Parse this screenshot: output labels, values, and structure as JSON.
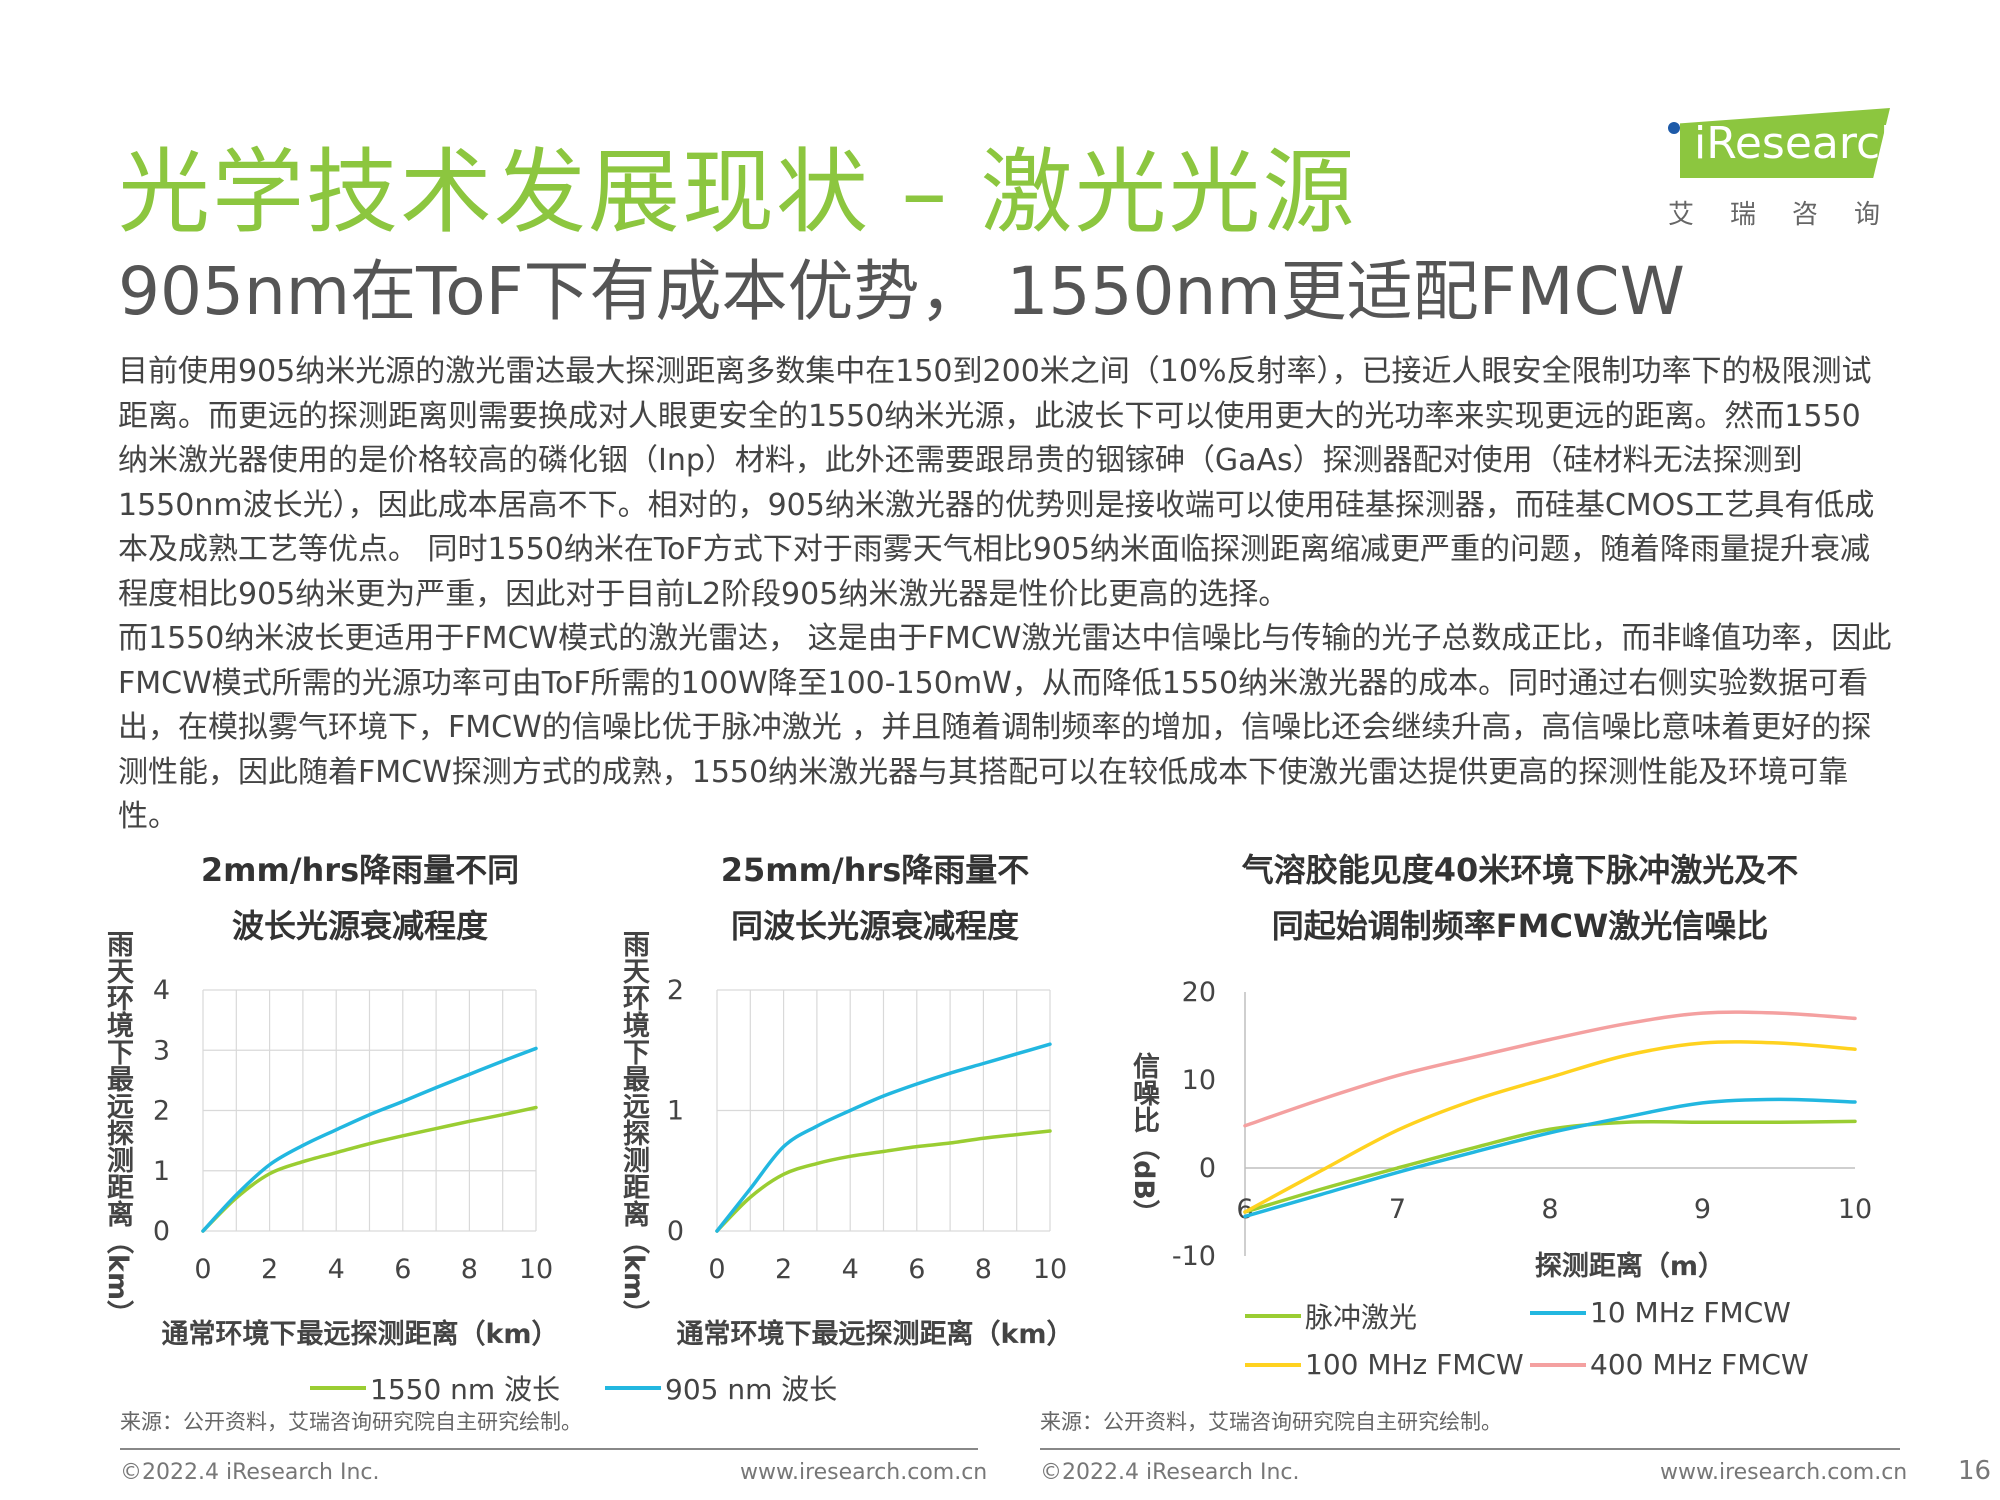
{
  "header": {
    "title": "光学技术发展现状 – 激光光源",
    "subtitle": "905nm在ToF下有成本优势， 1550nm更适配FMCW",
    "logo_text": "iResearch",
    "logo_sub": "艾瑞咨询",
    "logo_color": "#8cc63f"
  },
  "body": {
    "para1": "目前使用905纳米光源的激光雷达最大探测距离多数集中在150到200米之间（10%反射率），已接近人眼安全限制功率下的极限测试距离。而更远的探测距离则需要换成对人眼更安全的1550纳米光源，此波长下可以使用更大的光功率来实现更远的距离。然而1550 纳米激光器使用的是价格较高的磷化铟（Inp）材料，此外还需要跟昂贵的铟镓砷（GaAs）探测器配对使用（硅材料无法探测到1550nm波长光），因此成本居高不下。相对的，905纳米激光器的优势则是接收端可以使用硅基探测器，而硅基CMOS工艺具有低成本及成熟工艺等优点。 同时1550纳米在ToF方式下对于雨雾天气相比905纳米面临探测距离缩减更严重的问题，随着降雨量提升衰减程度相比905纳米更为严重，因此对于目前L2阶段905纳米激光器是性价比更高的选择。",
    "para2": "而1550纳米波长更适用于FMCW模式的激光雷达， 这是由于FMCW激光雷达中信噪比与传输的光子总数成正比，而非峰值功率，因此FMCW模式所需的光源功率可由ToF所需的100W降至100-150mW，从而降低1550纳米激光器的成本。同时通过右侧实验数据可看出，在模拟雾气环境下，FMCW的信噪比优于脉冲激光 ，并且随着调制频率的增加，信噪比还会继续升高，高信噪比意味着更好的探测性能，因此随着FMCW探测方式的成熟，1550纳米激光器与其搭配可以在较低成本下使激光雷达提供更高的探测性能及环境可靠性。"
  },
  "chart_data": [
    {
      "type": "line",
      "title": "2mm/hrs降雨量不同波长光源衰减程度",
      "xlabel": "通常环境下最远探测距离（km）",
      "ylabel": "雨天环境下最远探测距离（km）",
      "xlim": [
        0,
        10
      ],
      "ylim": [
        0,
        4
      ],
      "xticks": [
        "0",
        "2",
        "4",
        "6",
        "8",
        "10"
      ],
      "yticks": [
        "0",
        "1",
        "2",
        "3",
        "4"
      ],
      "grid": true,
      "x": [
        0,
        1,
        2,
        3,
        4,
        5,
        6,
        7,
        8,
        9,
        10
      ],
      "series": [
        {
          "name": "1550 nm 波长",
          "color": "#9acd32",
          "values": [
            0,
            0.55,
            0.95,
            1.15,
            1.3,
            1.45,
            1.58,
            1.7,
            1.82,
            1.93,
            2.05
          ]
        },
        {
          "name": "905 nm 波长",
          "color": "#22b7e0",
          "values": [
            0,
            0.6,
            1.1,
            1.42,
            1.68,
            1.93,
            2.15,
            2.38,
            2.6,
            2.82,
            3.03
          ]
        }
      ]
    },
    {
      "type": "line",
      "title": "25mm/hrs降雨量不同波长光源衰减程度",
      "xlabel": "通常环境下最远探测距离（km）",
      "ylabel": "雨天环境下最远探测距离（km）",
      "xlim": [
        0,
        10
      ],
      "ylim": [
        0,
        2
      ],
      "xticks": [
        "0",
        "2",
        "4",
        "6",
        "8",
        "10"
      ],
      "yticks": [
        "0",
        "1",
        "2"
      ],
      "grid": true,
      "x": [
        0,
        1,
        2,
        3,
        4,
        5,
        6,
        7,
        8,
        9,
        10
      ],
      "series": [
        {
          "name": "1550 nm 波长",
          "color": "#9acd32",
          "values": [
            0,
            0.28,
            0.47,
            0.56,
            0.62,
            0.66,
            0.7,
            0.73,
            0.77,
            0.8,
            0.83
          ]
        },
        {
          "name": "905 nm 波长",
          "color": "#22b7e0",
          "values": [
            0,
            0.35,
            0.7,
            0.87,
            1.0,
            1.12,
            1.22,
            1.31,
            1.39,
            1.47,
            1.55
          ]
        }
      ]
    },
    {
      "type": "line",
      "title": "气溶胶能见度40米环境下脉冲激光及不同起始调制频率FMCW激光信噪比",
      "xlabel": "探测距离（m）",
      "ylabel": "信噪比（dB）",
      "xlim": [
        6,
        10
      ],
      "ylim": [
        -10,
        20
      ],
      "xticks": [
        "6",
        "7",
        "8",
        "9",
        "10"
      ],
      "yticks": [
        "-10",
        "0",
        "10",
        "20"
      ],
      "grid": false,
      "x": [
        6,
        6.5,
        7,
        7.5,
        8,
        8.5,
        9,
        9.5,
        10
      ],
      "series": [
        {
          "name": "脉冲激光",
          "color": "#9acd32",
          "values": [
            -5.0,
            -2.4,
            0.0,
            2.3,
            4.4,
            5.2,
            5.2,
            5.2,
            5.3
          ]
        },
        {
          "name": "10 MHz FMCW",
          "color": "#22b7e0",
          "values": [
            -5.5,
            -3.0,
            -0.5,
            1.8,
            4.0,
            5.8,
            7.4,
            7.8,
            7.5
          ]
        },
        {
          "name": "100 MHz FMCW",
          "color": "#ffd21f",
          "values": [
            -5.0,
            -0.3,
            4.3,
            7.7,
            10.3,
            12.8,
            14.2,
            14.2,
            13.5
          ]
        },
        {
          "name": "400 MHz FMCW",
          "color": "#f4a0a0",
          "values": [
            4.8,
            7.8,
            10.5,
            12.6,
            14.6,
            16.4,
            17.6,
            17.6,
            17.0
          ]
        }
      ]
    }
  ],
  "chart_titles": {
    "c1_line1": "2mm/hrs降雨量不同",
    "c1_line2": "波长光源衰减程度",
    "c2_line1": "25mm/hrs降雨量不",
    "c2_line2": "同波长光源衰减程度",
    "c3_line1": "气溶胶能见度40米环境下脉冲激光及不",
    "c3_line2": "同起始调制频率FMCW激光信噪比"
  },
  "legend_left": {
    "item1": "1550 nm 波长",
    "item2": "905 nm 波长"
  },
  "legend_right": {
    "item1": "脉冲激光",
    "item2": "10 MHz FMCW",
    "item3": "100 MHz FMCW",
    "item4": "400 MHz FMCW"
  },
  "source_text": "来源：公开资料，艾瑞咨询研究院自主研究绘制。",
  "footer": {
    "copyright": "©2022.4 iResearch Inc.",
    "website": "www.iresearch.com.cn",
    "page_number": "16"
  }
}
